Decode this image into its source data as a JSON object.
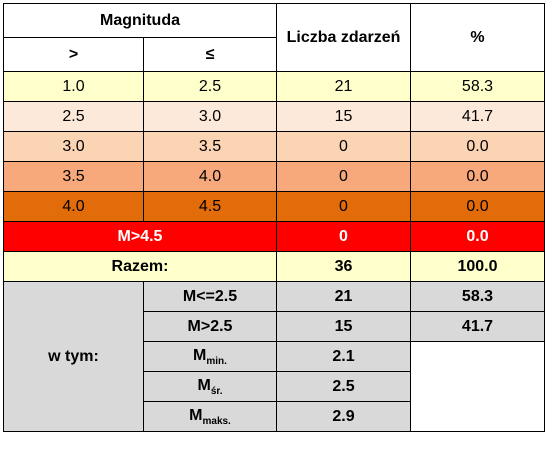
{
  "header": {
    "magnitude": "Magnituda",
    "gt": ">",
    "le": "≤",
    "events": "Liczba zdarzeń",
    "percent": "%"
  },
  "rows": [
    {
      "gt": "1.0",
      "le": "2.5",
      "events": "21",
      "percent": "58.3"
    },
    {
      "gt": "2.5",
      "le": "3.0",
      "events": "15",
      "percent": "41.7"
    },
    {
      "gt": "3.0",
      "le": "3.5",
      "events": "0",
      "percent": "0.0"
    },
    {
      "gt": "3.5",
      "le": "4.0",
      "events": "0",
      "percent": "0.0"
    },
    {
      "gt": "4.0",
      "le": "4.5",
      "events": "0",
      "percent": "0.0"
    }
  ],
  "high": {
    "label": "M>4.5",
    "events": "0",
    "percent": "0.0"
  },
  "total": {
    "label": "Razem:",
    "events": "36",
    "percent": "100.0"
  },
  "breakdown": {
    "label": "w tym:",
    "le25": {
      "label": "M<=2.5",
      "events": "21",
      "percent": "58.3"
    },
    "gt25": {
      "label": "M>2.5",
      "events": "15",
      "percent": "41.7"
    },
    "mmin": {
      "base": "M",
      "sub": "min.",
      "value": "2.1"
    },
    "mavg": {
      "base": "M",
      "sub": "śr.",
      "value": "2.5"
    },
    "mmax": {
      "base": "M",
      "sub": "maks.",
      "value": "2.9"
    }
  },
  "colors": {
    "band1": "#FFFFCC",
    "band2": "#FDE9D9",
    "band3": "#FBD4B4",
    "band4": "#F7A97B",
    "band5": "#E26B0A",
    "high": "#FF0000",
    "summary_grey": "#D9D9D9"
  }
}
